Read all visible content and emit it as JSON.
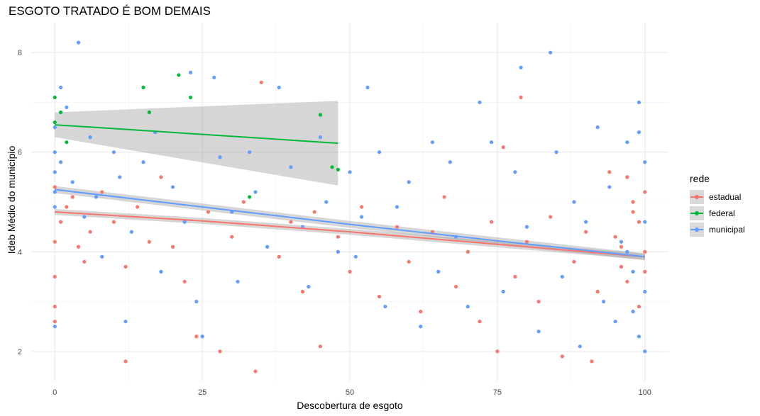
{
  "chart_data": {
    "type": "scatter",
    "title": "ESGOTO TRATADO É BOM DEMAIS",
    "xlabel": "Descobertura de esgoto",
    "ylabel": "Ideb Médio do município",
    "xlim": [
      -4,
      104
    ],
    "ylim": [
      1.4,
      8.6
    ],
    "x_ticks": [
      0,
      25,
      50,
      75,
      100
    ],
    "y_ticks": [
      2,
      4,
      6,
      8
    ],
    "grid": true,
    "legend": {
      "title": "rede",
      "placement": "right"
    },
    "series": [
      {
        "name": "estadual",
        "color": "#F8766D",
        "trend": {
          "x": [
            0,
            25,
            50,
            75,
            100
          ],
          "y": [
            4.8,
            4.62,
            4.4,
            4.15,
            3.9
          ]
        },
        "points": [
          [
            0,
            4.2
          ],
          [
            0,
            3.5
          ],
          [
            0,
            2.9
          ],
          [
            0,
            2.6
          ],
          [
            0,
            5.3
          ],
          [
            1,
            4.6
          ],
          [
            2,
            4.9
          ],
          [
            3,
            5.1
          ],
          [
            4,
            4.1
          ],
          [
            5,
            3.8
          ],
          [
            6,
            4.4
          ],
          [
            8,
            5.2
          ],
          [
            10,
            4.6
          ],
          [
            12,
            3.7
          ],
          [
            12,
            1.8
          ],
          [
            14,
            4.9
          ],
          [
            16,
            4.2
          ],
          [
            18,
            5.5
          ],
          [
            20,
            4.1
          ],
          [
            22,
            3.4
          ],
          [
            24,
            2.3
          ],
          [
            26,
            4.8
          ],
          [
            28,
            2.0
          ],
          [
            30,
            4.3
          ],
          [
            32,
            5.0
          ],
          [
            34,
            1.6
          ],
          [
            35,
            7.4
          ],
          [
            38,
            3.9
          ],
          [
            40,
            4.6
          ],
          [
            42,
            3.2
          ],
          [
            44,
            4.8
          ],
          [
            45,
            2.1
          ],
          [
            48,
            4.3
          ],
          [
            50,
            3.6
          ],
          [
            52,
            4.9
          ],
          [
            55,
            3.1
          ],
          [
            58,
            4.5
          ],
          [
            60,
            3.8
          ],
          [
            62,
            2.8
          ],
          [
            64,
            4.4
          ],
          [
            66,
            5.1
          ],
          [
            68,
            3.3
          ],
          [
            70,
            4.0
          ],
          [
            72,
            2.6
          ],
          [
            74,
            4.6
          ],
          [
            75,
            2.0
          ],
          [
            76,
            6.1
          ],
          [
            78,
            3.5
          ],
          [
            79,
            7.1
          ],
          [
            80,
            4.2
          ],
          [
            82,
            3.0
          ],
          [
            84,
            4.7
          ],
          [
            86,
            1.9
          ],
          [
            88,
            3.8
          ],
          [
            90,
            4.4
          ],
          [
            91,
            1.8
          ],
          [
            92,
            3.2
          ],
          [
            94,
            5.6
          ],
          [
            96,
            4.1
          ],
          [
            97,
            3.4
          ],
          [
            98,
            5.0
          ],
          [
            99,
            4.6
          ],
          [
            100,
            4.0
          ],
          [
            100,
            3.6
          ],
          [
            100,
            5.2
          ],
          [
            99,
            2.9
          ],
          [
            98,
            4.8
          ],
          [
            97,
            5.5
          ],
          [
            96,
            3.7
          ],
          [
            95,
            4.3
          ]
        ]
      },
      {
        "name": "federal",
        "color": "#00BA38",
        "trend": {
          "x": [
            0,
            48
          ],
          "y": [
            6.55,
            6.18
          ]
        },
        "points": [
          [
            0,
            7.1
          ],
          [
            0,
            6.6
          ],
          [
            1,
            6.8
          ],
          [
            2,
            6.2
          ],
          [
            15,
            7.3
          ],
          [
            16,
            6.8
          ],
          [
            21,
            7.55
          ],
          [
            23,
            7.1
          ],
          [
            33,
            5.1
          ],
          [
            45,
            6.75
          ],
          [
            47,
            5.7
          ],
          [
            48,
            5.65
          ]
        ]
      },
      {
        "name": "municipal",
        "color": "#619CFF",
        "trend": {
          "x": [
            0,
            25,
            50,
            75,
            100
          ],
          "y": [
            5.25,
            4.9,
            4.55,
            4.22,
            3.9
          ]
        },
        "points": [
          [
            0,
            6.5
          ],
          [
            0,
            6.0
          ],
          [
            0,
            5.6
          ],
          [
            0,
            5.2
          ],
          [
            0,
            4.9
          ],
          [
            0,
            2.5
          ],
          [
            1,
            7.3
          ],
          [
            1,
            5.8
          ],
          [
            2,
            6.9
          ],
          [
            3,
            5.4
          ],
          [
            4,
            8.2
          ],
          [
            5,
            4.7
          ],
          [
            6,
            6.3
          ],
          [
            7,
            5.1
          ],
          [
            8,
            3.9
          ],
          [
            10,
            6.0
          ],
          [
            11,
            5.5
          ],
          [
            12,
            2.6
          ],
          [
            13,
            4.4
          ],
          [
            15,
            5.8
          ],
          [
            17,
            6.4
          ],
          [
            18,
            3.6
          ],
          [
            20,
            5.3
          ],
          [
            22,
            4.6
          ],
          [
            23,
            7.6
          ],
          [
            24,
            3.0
          ],
          [
            25,
            2.3
          ],
          [
            27,
            7.5
          ],
          [
            28,
            5.9
          ],
          [
            30,
            4.8
          ],
          [
            31,
            3.4
          ],
          [
            33,
            6.0
          ],
          [
            34,
            5.2
          ],
          [
            36,
            4.1
          ],
          [
            38,
            7.3
          ],
          [
            40,
            5.7
          ],
          [
            42,
            4.5
          ],
          [
            43,
            3.3
          ],
          [
            45,
            6.3
          ],
          [
            46,
            5.0
          ],
          [
            48,
            4.0
          ],
          [
            50,
            5.6
          ],
          [
            51,
            3.9
          ],
          [
            52,
            4.7
          ],
          [
            53,
            7.3
          ],
          [
            55,
            6.0
          ],
          [
            56,
            2.9
          ],
          [
            58,
            4.9
          ],
          [
            60,
            5.4
          ],
          [
            62,
            2.5
          ],
          [
            64,
            6.2
          ],
          [
            65,
            3.6
          ],
          [
            67,
            5.8
          ],
          [
            68,
            4.3
          ],
          [
            70,
            2.9
          ],
          [
            72,
            7.0
          ],
          [
            74,
            6.2
          ],
          [
            76,
            3.2
          ],
          [
            78,
            5.6
          ],
          [
            79,
            7.7
          ],
          [
            80,
            4.5
          ],
          [
            82,
            2.4
          ],
          [
            84,
            8.0
          ],
          [
            85,
            6.0
          ],
          [
            86,
            3.5
          ],
          [
            88,
            5.0
          ],
          [
            89,
            2.1
          ],
          [
            90,
            4.6
          ],
          [
            92,
            6.5
          ],
          [
            93,
            3.0
          ],
          [
            94,
            5.3
          ],
          [
            95,
            2.6
          ],
          [
            96,
            4.2
          ],
          [
            97,
            6.2
          ],
          [
            98,
            3.6
          ],
          [
            99,
            7.0
          ],
          [
            99,
            2.3
          ],
          [
            100,
            5.8
          ],
          [
            100,
            4.6
          ],
          [
            100,
            3.2
          ],
          [
            99,
            6.4
          ],
          [
            98,
            2.8
          ],
          [
            100,
            2.0
          ],
          [
            97,
            4.0
          ]
        ]
      }
    ]
  }
}
